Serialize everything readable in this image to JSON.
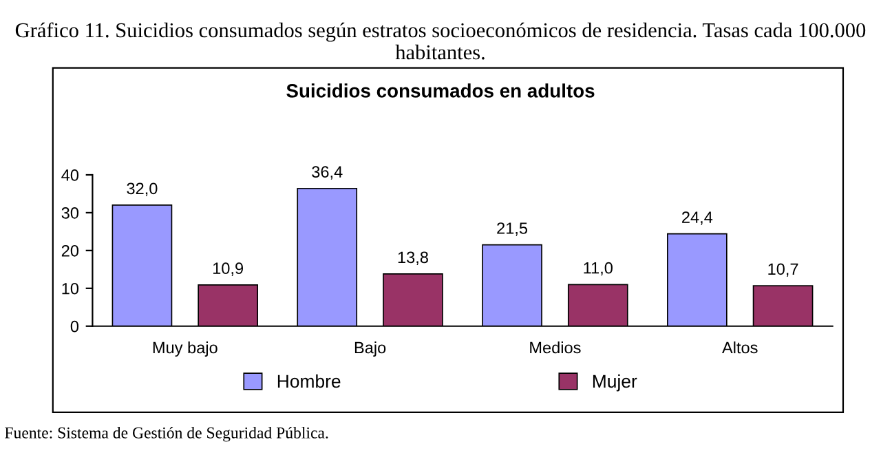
{
  "chart_data": {
    "type": "bar",
    "title": "Suicidios consumados en adultos",
    "annotations": [
      "Gráfico 11. Suicidios consumados según estratos socioeconómicos de residencia. Tasas cada 100.000 habitantes.",
      "Fuente: Sistema de Gestión de Seguridad Pública."
    ],
    "categories": [
      "Muy bajo",
      "Bajo",
      "Medios",
      "Altos"
    ],
    "series": [
      {
        "name": "Hombre",
        "color": "#9999ff",
        "values": [
          32.0,
          36.4,
          21.5,
          24.4
        ],
        "value_labels": [
          "32,0",
          "36,4",
          "21,5",
          "24,4"
        ]
      },
      {
        "name": "Mujer",
        "color": "#993366",
        "values": [
          10.9,
          13.8,
          11.0,
          10.7
        ],
        "value_labels": [
          "10,9",
          "13,8",
          "11,0",
          "10,7"
        ]
      }
    ],
    "ylim": [
      0,
      40
    ],
    "yticks": [
      0,
      10,
      20,
      30,
      40
    ],
    "grid": false,
    "legend": "bottom"
  }
}
